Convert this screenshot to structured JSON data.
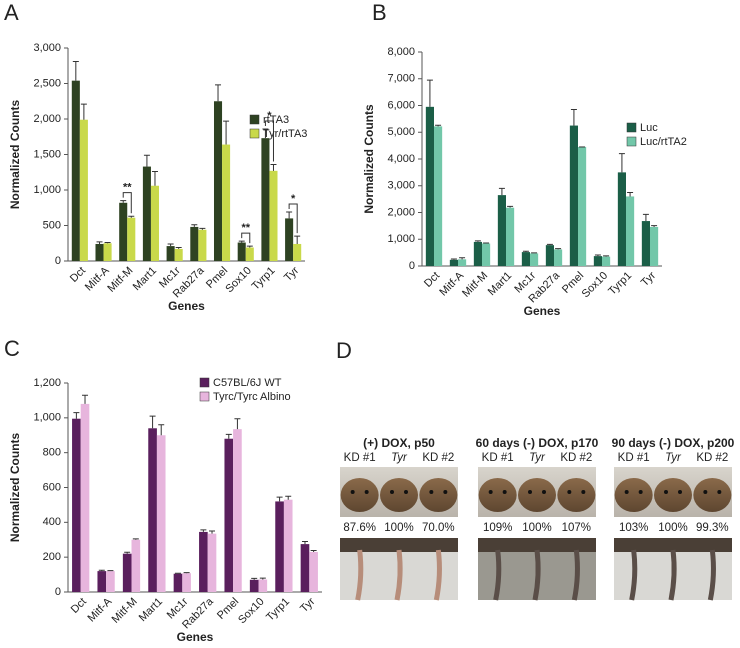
{
  "chart_data": [
    {
      "type": "bar",
      "panel": "A",
      "y_label": "Normalized Counts",
      "x_label": "Genes",
      "categories": [
        "Dct",
        "Mitf-A",
        "Mitf-M",
        "Mart1",
        "Mc1r",
        "Rab27a",
        "Pmel",
        "Sox10",
        "Tyrp1",
        "Tyr"
      ],
      "series": [
        {
          "name": "rtTA3",
          "color": "#2e4222",
          "values": [
            2540,
            240,
            820,
            1330,
            210,
            480,
            2250,
            260,
            1730,
            600
          ],
          "errors": [
            270,
            30,
            30,
            160,
            30,
            30,
            230,
            20,
            130,
            90
          ]
        },
        {
          "name": "Tyr/rtTA3",
          "color": "#c9d94a",
          "values": [
            1990,
            250,
            610,
            1060,
            170,
            440,
            1640,
            190,
            1270,
            240
          ],
          "errors": [
            220,
            10,
            20,
            200,
            20,
            20,
            330,
            20,
            90,
            110
          ]
        }
      ],
      "annotations": [
        "**",
        "**",
        "*",
        "*"
      ],
      "ylim": [
        0,
        3000
      ],
      "yticks": [
        0,
        500,
        {
          "value": 1000,
          "label": "1,000"
        },
        {
          "value": 1500,
          "label": "1,500"
        },
        {
          "value": 2000,
          "label": "2,000"
        },
        {
          "value": 2500,
          "label": "2,500"
        },
        {
          "value": 3000,
          "label": "3,000"
        }
      ],
      "legend": "right"
    },
    {
      "type": "bar",
      "panel": "B",
      "y_label": "Normalized Counts",
      "x_label": "Genes",
      "categories": [
        "Dct",
        "Mitf-A",
        "Mitf-M",
        "Mart1",
        "Mc1r",
        "Rab27a",
        "Pmel",
        "Sox10",
        "Tyrp1",
        "Tyr"
      ],
      "series": [
        {
          "name": "Luc",
          "color": "#1b5e47",
          "values": [
            5950,
            230,
            900,
            2650,
            520,
            780,
            5250,
            370,
            3500,
            1680
          ],
          "errors": [
            1000,
            30,
            40,
            250,
            30,
            30,
            600,
            40,
            700,
            250
          ]
        },
        {
          "name": "Luc/rtTA2",
          "color": "#72c7a9",
          "values": [
            5220,
            250,
            840,
            2180,
            470,
            620,
            4450,
            350,
            2600,
            1460
          ],
          "errors": [
            40,
            60,
            20,
            50,
            20,
            30,
            0,
            30,
            150,
            50
          ]
        }
      ],
      "ylim": [
        0,
        8000
      ],
      "yticks": [
        0,
        {
          "value": 1000,
          "label": "1,000"
        },
        {
          "value": 2000,
          "label": "2,000"
        },
        {
          "value": 3000,
          "label": "3,000"
        },
        {
          "value": 4000,
          "label": "4,000"
        },
        {
          "value": 5000,
          "label": "5,000"
        },
        {
          "value": 6000,
          "label": "6,000"
        },
        {
          "value": 7000,
          "label": "7,000"
        },
        {
          "value": 8000,
          "label": "8,000"
        }
      ],
      "legend": "right"
    },
    {
      "type": "bar",
      "panel": "C",
      "y_label": "Normalized Counts",
      "x_label": "Genes",
      "categories": [
        "Dct",
        "Mitf-A",
        "Mitf-M",
        "Mart1",
        "Mc1r",
        "Rab27a",
        "Pmel",
        "Sox10",
        "Tyrp1",
        "Tyr"
      ],
      "series": [
        {
          "name": "C57BL/6J WT",
          "color": "#5a1f5d",
          "values": [
            995,
            120,
            220,
            940,
            105,
            345,
            880,
            70,
            520,
            275
          ],
          "errors": [
            35,
            5,
            8,
            70,
            3,
            12,
            25,
            8,
            25,
            15
          ]
        },
        {
          "name": "Tyrc/Tyrc Albino",
          "color": "#e7b5dd",
          "values": [
            1080,
            120,
            300,
            900,
            108,
            335,
            935,
            72,
            530,
            230
          ],
          "errors": [
            50,
            3,
            5,
            60,
            3,
            15,
            60,
            8,
            20,
            8
          ]
        }
      ],
      "ylim": [
        0,
        1200
      ],
      "yticks": [
        0,
        200,
        400,
        600,
        800,
        {
          "value": 1000,
          "label": "1,000"
        },
        {
          "value": 1200,
          "label": "1,200"
        }
      ],
      "legend": "upper right"
    }
  ],
  "panel_d": {
    "panel": "D",
    "groups": [
      {
        "title": "(+) DOX, p50",
        "labels": [
          "KD #1",
          "Tyr",
          "KD #2"
        ],
        "percents": [
          "87.6%",
          "100%",
          "70.0%"
        ]
      },
      {
        "title": "60 days (-) DOX, p170",
        "labels": [
          "KD #1",
          "Tyr",
          "KD #2"
        ],
        "percents": [
          "109%",
          "100%",
          "107%"
        ]
      },
      {
        "title": "90 days (-) DOX, p200",
        "labels": [
          "KD #1",
          "Tyr",
          "KD #2"
        ],
        "percents": [
          "103%",
          "100%",
          "99.3%"
        ]
      }
    ]
  }
}
